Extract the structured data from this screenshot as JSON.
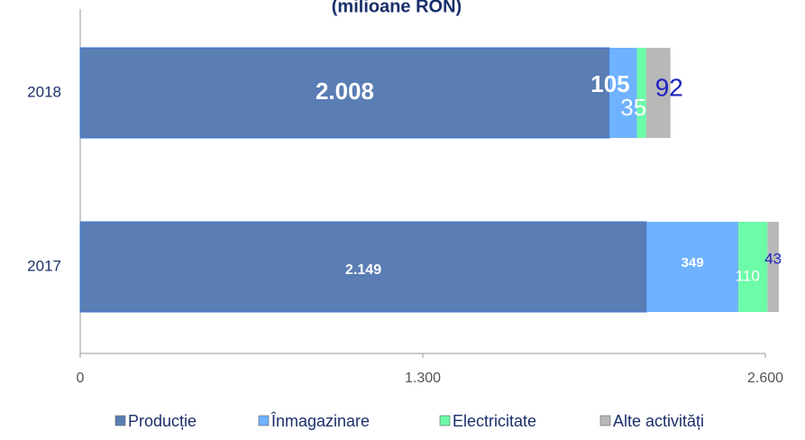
{
  "chart_data": {
    "type": "stacked-bar-horizontal",
    "title": "(milioane RON)",
    "categories": [
      "2018",
      "2017"
    ],
    "series": [
      {
        "name": "Producție",
        "color": "#5a7db4",
        "values": [
          2008,
          2149
        ],
        "value_labels": [
          "2.008",
          "2.149"
        ]
      },
      {
        "name": "Înmagazinare",
        "color": "#6fb2ff",
        "values": [
          105,
          349
        ]
      },
      {
        "name": "Electricitate",
        "color": "#6cfba8",
        "values": [
          35,
          110
        ]
      },
      {
        "name": "Alte activități",
        "color": "#b8b8b8",
        "values": [
          92,
          43
        ]
      }
    ],
    "xlim": [
      0,
      2600
    ],
    "xticks": [
      0,
      {
        "value": 1300,
        "label": "1.300"
      },
      {
        "value": 2600,
        "label": "2.600"
      }
    ],
    "legend": "bottom"
  }
}
